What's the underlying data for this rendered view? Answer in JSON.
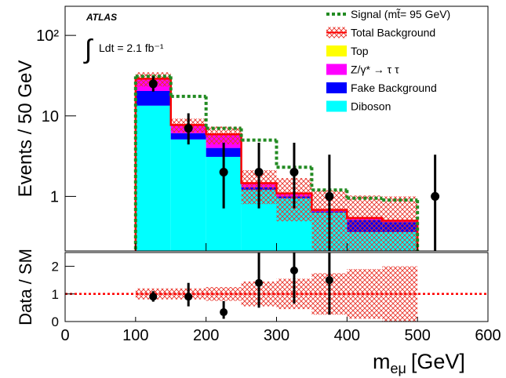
{
  "chart_data": {
    "type": "stacked_histogram",
    "bins": [
      100,
      150,
      200,
      250,
      300,
      350,
      400,
      450,
      500
    ],
    "xlim": [
      0,
      600
    ],
    "xticks": [
      0,
      100,
      200,
      300,
      400,
      500,
      600
    ],
    "x_label": "m",
    "x_label_sub": "eμ",
    "x_label_unit": "[GeV]",
    "y_label": "Events / 50 GeV",
    "log_scale": true,
    "ylim": [
      0.21,
      230
    ],
    "yticks": [
      1,
      10,
      {
        "value": 100,
        "label": "10²"
      }
    ],
    "legend": "top-right",
    "annotations": {
      "experiment": "ATLAS",
      "integral": "∫",
      "lumi": "Ldt = 2.1 fb⁻¹"
    },
    "signal": {
      "name": "Signal (mt̃= 95 GeV)",
      "color": "#228b22",
      "values": [
        31,
        17.5,
        7,
        5,
        2.3,
        1.2,
        0.95,
        0.9
      ]
    },
    "total": {
      "name": "Total Background",
      "color": "#ff0000",
      "uncertainty": [
        0.2,
        0.2,
        0.25,
        0.45,
        0.55,
        0.75,
        0.9,
        1.0
      ]
    },
    "series": [
      {
        "name": "Diboson",
        "color": "#00ffff",
        "values": [
          13.4,
          5.1,
          3.1,
          1.2,
          0.95,
          0.63,
          0.36,
          0.36
        ]
      },
      {
        "name": "Fake Background",
        "color": "#0000ff",
        "values": [
          7,
          1.0,
          0.9,
          0.1,
          0.05,
          0.02,
          0.15,
          0.12
        ]
      },
      {
        "name": "Z/γ* → τ τ",
        "color": "#ff00ff",
        "values": [
          8,
          1.5,
          1.8,
          0.13,
          0.07,
          0.02,
          0.02,
          0.01
        ]
      },
      {
        "name": "Top",
        "color": "#ffff00",
        "values": [
          0.6,
          0.1,
          0.1,
          0.03,
          0.02,
          0.01,
          0.01,
          0.01
        ]
      }
    ],
    "data": {
      "x": [
        125,
        175,
        225,
        275,
        325,
        375,
        525
      ],
      "values": [
        25,
        7,
        2,
        2,
        2,
        1,
        1
      ],
      "err_low": [
        4.97,
        2.58,
        1.29,
        1.29,
        1.29,
        0.83,
        0.83
      ],
      "err_high": [
        6.06,
        3.77,
        2.64,
        2.64,
        2.64,
        2.3,
        2.3
      ]
    },
    "ratio": {
      "y_label": "Data / SM",
      "ylim": [
        0,
        2.5
      ],
      "yticks": [
        0,
        1,
        2
      ],
      "reference": 1,
      "x": [
        125,
        175,
        225,
        275,
        325,
        375
      ],
      "values": [
        0.9,
        0.9,
        0.34,
        1.4,
        1.85,
        1.5
      ],
      "err_low": [
        0.18,
        0.35,
        0.24,
        0.9,
        1.2,
        1.25
      ],
      "err_high": [
        0.2,
        0.5,
        0.4,
        1.9,
        1.6,
        3.4
      ]
    }
  }
}
